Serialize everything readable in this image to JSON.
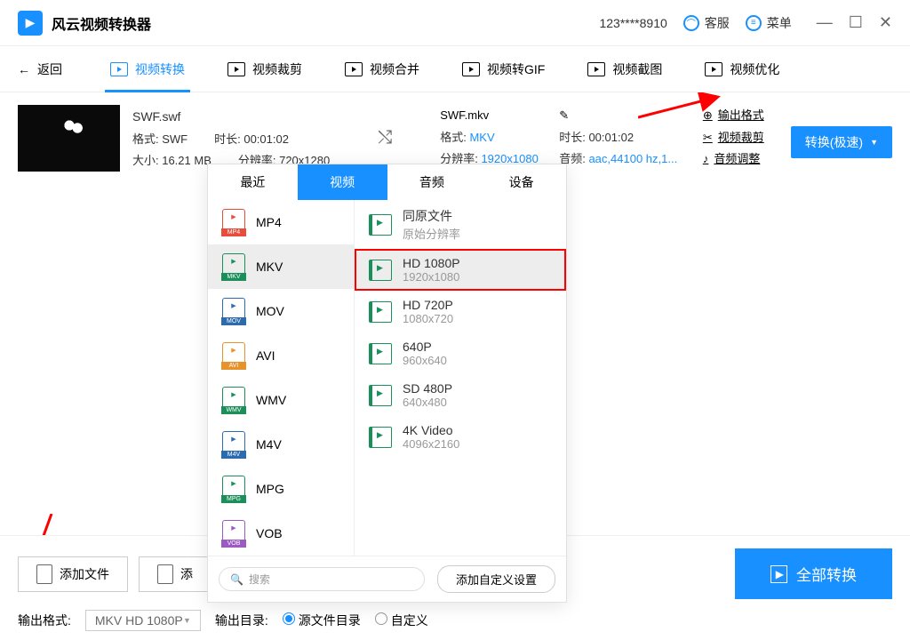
{
  "app_title": "风云视频转换器",
  "titlebar": {
    "account": "123****8910",
    "support": "客服",
    "menu": "菜单"
  },
  "nav": {
    "back": "返回",
    "tabs": [
      "视频转换",
      "视频裁剪",
      "视频合并",
      "视频转GIF",
      "视频截图",
      "视频优化"
    ],
    "active_index": 0
  },
  "source": {
    "filename": "SWF.swf",
    "format_label": "格式: SWF",
    "duration_label": "时长: 00:01:02",
    "size_label": "大小: 16.21 MB",
    "res_label": "分辨率: 720x1280"
  },
  "output": {
    "filename": "SWF.mkv",
    "format_label": "格式: ",
    "format_value": "MKV",
    "duration_label": "时长: 00:01:02",
    "res_label": "分辨率: ",
    "res_value": "1920x1080",
    "audio_label": "音频: ",
    "audio_value": "aac,44100 hz,1..."
  },
  "side_actions": {
    "edit": "",
    "output_format": "输出格式",
    "video_crop": "视频裁剪",
    "audio_adjust": "音频调整"
  },
  "convert_button": "转换(极速)",
  "dropdown": {
    "tabs": [
      "最近",
      "视频",
      "音频",
      "设备"
    ],
    "active_tab": 1,
    "formats": [
      {
        "name": "MP4",
        "color": "#e74c3c"
      },
      {
        "name": "MKV",
        "color": "#1b8f5a"
      },
      {
        "name": "MOV",
        "color": "#2c6bb0"
      },
      {
        "name": "AVI",
        "color": "#e8922b"
      },
      {
        "name": "WMV",
        "color": "#1b8f5a"
      },
      {
        "name": "M4V",
        "color": "#2c6bb0"
      },
      {
        "name": "MPG",
        "color": "#1b8f5a"
      },
      {
        "name": "VOB",
        "color": "#9b5bc2"
      }
    ],
    "selected_format": 1,
    "resolutions": [
      {
        "title": "同原文件",
        "sub": "原始分辨率"
      },
      {
        "title": "HD 1080P",
        "sub": "1920x1080"
      },
      {
        "title": "HD 720P",
        "sub": "1080x720"
      },
      {
        "title": "640P",
        "sub": "960x640"
      },
      {
        "title": "SD 480P",
        "sub": "640x480"
      },
      {
        "title": "4K Video",
        "sub": "4096x2160"
      }
    ],
    "selected_res": 1,
    "search_placeholder": "搜索",
    "custom_button": "添加自定义设置"
  },
  "bottom": {
    "add_file": "添加文件",
    "add_folder": "添",
    "convert_all": "全部转换",
    "output_format_label": "输出格式:",
    "output_format_value": "MKV HD 1080P",
    "output_dir_label": "输出目录:",
    "dir_source": "源文件目录",
    "dir_custom": "自定义"
  },
  "colors": {
    "primary": "#1890ff",
    "red_highlight": "#ff0000"
  }
}
